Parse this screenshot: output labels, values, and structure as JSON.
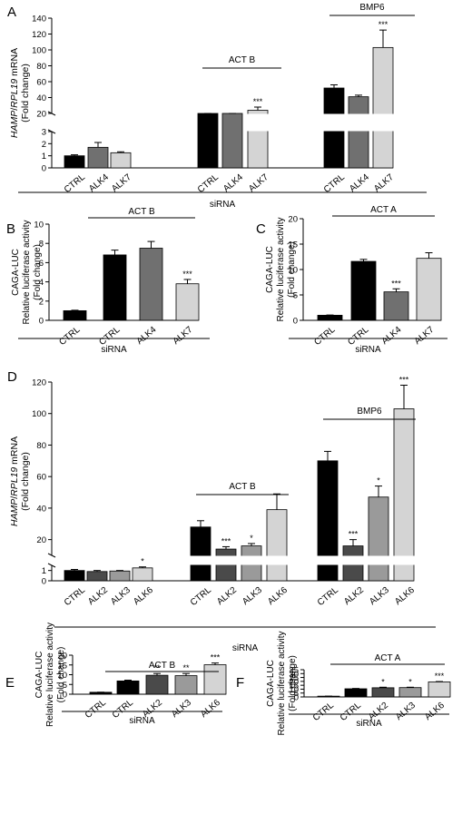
{
  "chart_data": [
    {
      "panel": "A",
      "type": "bar",
      "ylabel_parts": [
        "HAMP",
        "/",
        "RPL19",
        " mRNA"
      ],
      "ylabel2": "(Fold change)",
      "xlabel": "siRNA",
      "y_ticks_low": [
        "0",
        "1",
        "2",
        "3"
      ],
      "y_ticks_high": [
        "20",
        "40",
        "60",
        "80",
        "100",
        "120",
        "140"
      ],
      "axis_break": [
        3,
        20
      ],
      "ylim": [
        0,
        140
      ],
      "groups": [
        {
          "label": "",
          "bars": [
            {
              "category": "CTRL",
              "value": 1.0,
              "error": 0.08,
              "color": "#000000"
            },
            {
              "category": "ALK4",
              "value": 1.7,
              "error": 0.4,
              "color": "#707070"
            },
            {
              "category": "ALK7",
              "value": 1.25,
              "error": 0.08,
              "color": "#d4d4d4"
            }
          ]
        },
        {
          "label": "ACT B",
          "bars": [
            {
              "category": "CTRL",
              "value": 10,
              "error": 2,
              "color": "#000000"
            },
            {
              "category": "ALK4",
              "value": 14,
              "error": 2,
              "color": "#707070"
            },
            {
              "category": "ALK7",
              "value": 24,
              "error": 4,
              "color": "#d4d4d4",
              "sig": "***"
            }
          ]
        },
        {
          "label": "BMP6",
          "bars": [
            {
              "category": "CTRL",
              "value": 52,
              "error": 4,
              "color": "#000000"
            },
            {
              "category": "ALK4",
              "value": 41,
              "error": 2,
              "color": "#707070"
            },
            {
              "category": "ALK7",
              "value": 103,
              "error": 22,
              "color": "#d4d4d4",
              "sig": "***"
            }
          ]
        }
      ]
    },
    {
      "panel": "B",
      "type": "bar",
      "ylabel": [
        "CAGA-LUC",
        "Relative luciferase activity",
        "(Fold change)"
      ],
      "xlabel": "siRNA",
      "group_label": "ACT B",
      "y_ticks": [
        "0",
        "2",
        "4",
        "6",
        "8",
        "10"
      ],
      "ylim": [
        0,
        10
      ],
      "bars": [
        {
          "category": "CTRL",
          "value": 1.0,
          "error": 0.05,
          "color": "#000000"
        },
        {
          "category": "CTRL",
          "value": 6.8,
          "error": 0.5,
          "color": "#000000"
        },
        {
          "category": "ALK4",
          "value": 7.5,
          "error": 0.7,
          "color": "#707070"
        },
        {
          "category": "ALK7",
          "value": 3.8,
          "error": 0.45,
          "color": "#d4d4d4",
          "sig": "***"
        }
      ]
    },
    {
      "panel": "C",
      "type": "bar",
      "ylabel": [
        "CAGA-LUC",
        "Relative luciferase activity",
        "(Fold change)"
      ],
      "xlabel": "siRNA",
      "group_label": "ACT A",
      "y_ticks": [
        "0",
        "5",
        "10",
        "15",
        "20"
      ],
      "ylim": [
        0,
        20
      ],
      "bars": [
        {
          "category": "CTRL",
          "value": 1.0,
          "error": 0.05,
          "color": "#000000"
        },
        {
          "category": "CTRL",
          "value": 11.6,
          "error": 0.4,
          "color": "#000000"
        },
        {
          "category": "ALK4",
          "value": 5.6,
          "error": 0.6,
          "color": "#707070",
          "sig": "***"
        },
        {
          "category": "ALK7",
          "value": 12.2,
          "error": 1.1,
          "color": "#d4d4d4"
        }
      ]
    },
    {
      "panel": "D",
      "type": "bar",
      "ylabel_parts": [
        "HAMP",
        "/",
        "RPL19",
        " mRNA"
      ],
      "ylabel2": "(Fold change)",
      "xlabel": "siRNA",
      "y_ticks_low": [
        "0",
        "1"
      ],
      "y_ticks_high": [
        "20",
        "40",
        "60",
        "80",
        "100",
        "120"
      ],
      "axis_break": [
        1.5,
        10
      ],
      "ylim": [
        0,
        120
      ],
      "groups": [
        {
          "label": "",
          "bars": [
            {
              "category": "CTRL",
              "value": 1.0,
              "error": 0.1,
              "color": "#000000"
            },
            {
              "category": "ALK2",
              "value": 0.9,
              "error": 0.1,
              "color": "#4a4a4a"
            },
            {
              "category": "ALK3",
              "value": 0.95,
              "error": 0.05,
              "color": "#9a9a9a"
            },
            {
              "category": "ALK6",
              "value": 1.25,
              "error": 0.1,
              "color": "#d4d4d4",
              "sig": "*"
            }
          ]
        },
        {
          "label": "ACT B",
          "bars": [
            {
              "category": "CTRL",
              "value": 28,
              "error": 4,
              "color": "#000000"
            },
            {
              "category": "ALK2",
              "value": 14,
              "error": 1.5,
              "color": "#4a4a4a",
              "sig": "***"
            },
            {
              "category": "ALK3",
              "value": 16,
              "error": 1.5,
              "color": "#9a9a9a",
              "sig": "*"
            },
            {
              "category": "ALK6",
              "value": 39,
              "error": 10,
              "color": "#d4d4d4"
            }
          ]
        },
        {
          "label": "BMP6",
          "bars": [
            {
              "category": "CTRL",
              "value": 70,
              "error": 6,
              "color": "#000000"
            },
            {
              "category": "ALK2",
              "value": 16,
              "error": 4,
              "color": "#4a4a4a",
              "sig": "***"
            },
            {
              "category": "ALK3",
              "value": 47,
              "error": 7,
              "color": "#9a9a9a",
              "sig": "*"
            },
            {
              "category": "ALK6",
              "value": 103,
              "error": 15,
              "color": "#d4d4d4",
              "sig": "***"
            }
          ]
        }
      ]
    },
    {
      "panel": "E",
      "type": "bar",
      "ylabel": [
        "CAGA-LUC",
        "Relative luciferase activity",
        "(Fold change)"
      ],
      "xlabel": "siRNA",
      "group_label": "ACT B",
      "y_ticks": [
        "0",
        "5",
        "10",
        "15",
        "20"
      ],
      "ylim": [
        0,
        20
      ],
      "bars": [
        {
          "category": "CTRL",
          "value": 1.0,
          "error": 0.05,
          "color": "#000000"
        },
        {
          "category": "CTRL",
          "value": 6.8,
          "error": 0.4,
          "color": "#000000"
        },
        {
          "category": "ALK2",
          "value": 9.7,
          "error": 0.9,
          "color": "#4a4a4a",
          "sig": "**"
        },
        {
          "category": "ALK3",
          "value": 9.5,
          "error": 1.1,
          "color": "#9a9a9a",
          "sig": "**"
        },
        {
          "category": "ALK6",
          "value": 15.1,
          "error": 0.9,
          "color": "#d4d4d4",
          "sig": "***"
        }
      ]
    },
    {
      "panel": "F",
      "type": "bar",
      "ylabel": [
        "CAGA-LUC",
        "Relative luciferase activity",
        "(Fold change)"
      ],
      "xlabel": "siRNA",
      "group_label": "ACT A",
      "y_ticks": [
        "0",
        "5",
        "10",
        "15",
        "20",
        "25",
        "30",
        "35"
      ],
      "ylim": [
        0,
        35
      ],
      "bars": [
        {
          "category": "CTRL",
          "value": 1.0,
          "error": 0.05,
          "color": "#000000"
        },
        {
          "category": "CTRL",
          "value": 10.5,
          "error": 0.4,
          "color": "#000000"
        },
        {
          "category": "ALK2",
          "value": 11.8,
          "error": 0.7,
          "color": "#4a4a4a",
          "sig": "*"
        },
        {
          "category": "ALK3",
          "value": 12.0,
          "error": 0.5,
          "color": "#9a9a9a",
          "sig": "*"
        },
        {
          "category": "ALK6",
          "value": 19.3,
          "error": 0.5,
          "color": "#d4d4d4",
          "sig": "***"
        }
      ]
    }
  ]
}
